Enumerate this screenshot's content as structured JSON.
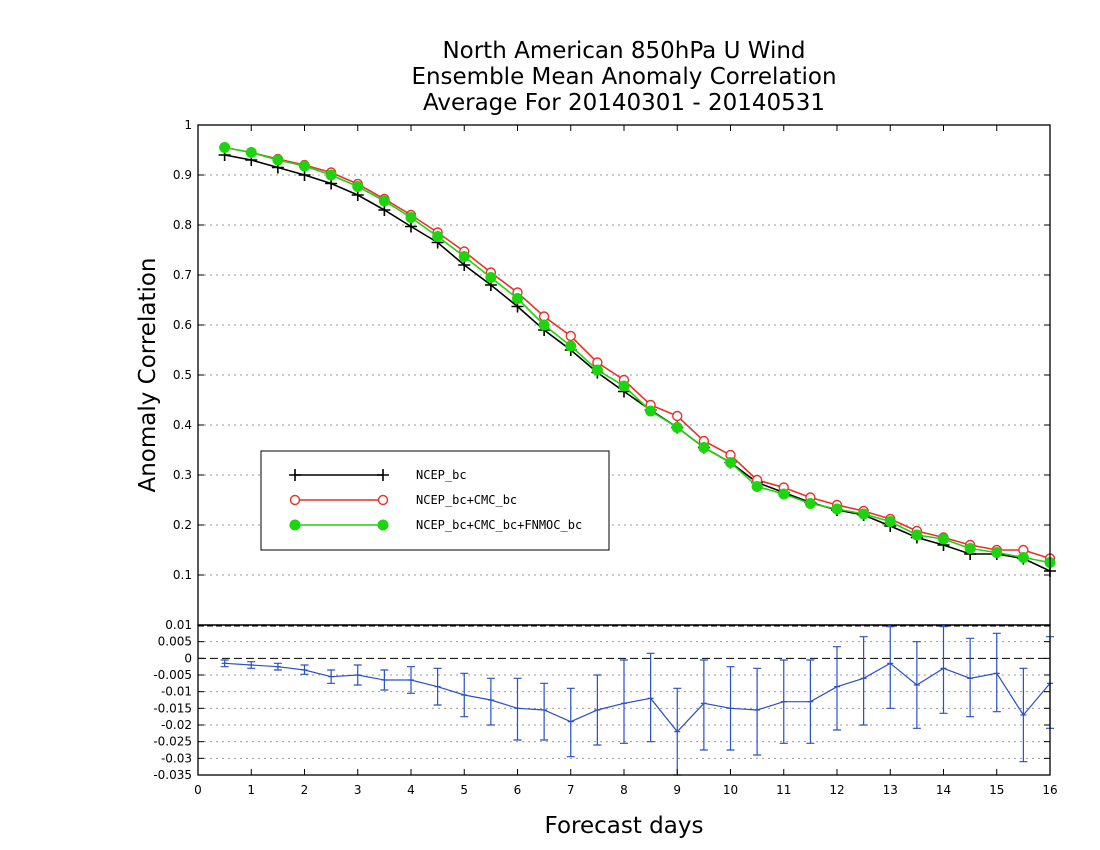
{
  "chart_data": [
    {
      "type": "line",
      "title": [
        "North American 850hPa U Wind",
        "Ensemble Mean Anomaly Correlation",
        "Average For 20140301 - 20140531"
      ],
      "ylabel": "Anomaly Correlation",
      "ylim": [
        0,
        1
      ],
      "yticks": [
        "0.1",
        "0.2",
        "0.3",
        "0.4",
        "0.5",
        "0.6",
        "0.7",
        "0.8",
        "0.9",
        "1"
      ],
      "grid": true,
      "legend_position": "lower-left",
      "x": [
        0.5,
        1,
        1.5,
        2,
        2.5,
        3,
        3.5,
        4,
        4.5,
        5,
        5.5,
        6,
        6.5,
        7,
        7.5,
        8,
        8.5,
        9,
        9.5,
        10,
        10.5,
        11,
        11.5,
        12,
        12.5,
        13,
        13.5,
        14,
        14.5,
        15,
        15.5,
        16
      ],
      "series": [
        {
          "name": "NCEP_bc",
          "color": "#000000",
          "marker": "plus",
          "values": [
            0.94,
            0.93,
            0.915,
            0.9,
            0.883,
            0.86,
            0.83,
            0.797,
            0.765,
            0.72,
            0.68,
            0.637,
            0.59,
            0.55,
            0.505,
            0.467,
            0.43,
            0.395,
            0.355,
            0.325,
            0.285,
            0.265,
            0.245,
            0.23,
            0.22,
            0.198,
            0.175,
            0.16,
            0.142,
            0.142,
            0.133,
            0.108
          ]
        },
        {
          "name": "NCEP_bc+CMC_bc",
          "color": "#e8312a",
          "marker": "open-circle",
          "values": [
            0.955,
            0.945,
            0.932,
            0.92,
            0.905,
            0.882,
            0.852,
            0.82,
            0.785,
            0.747,
            0.705,
            0.665,
            0.617,
            0.578,
            0.525,
            0.49,
            0.44,
            0.418,
            0.368,
            0.34,
            0.29,
            0.275,
            0.255,
            0.24,
            0.228,
            0.212,
            0.188,
            0.175,
            0.16,
            0.15,
            0.15,
            0.133
          ]
        },
        {
          "name": "NCEP_bc+CMC_bc+FNMOC_bc",
          "color": "#1ed40e",
          "marker": "filled-circle",
          "values": [
            0.955,
            0.945,
            0.93,
            0.918,
            0.9,
            0.877,
            0.848,
            0.815,
            0.777,
            0.737,
            0.695,
            0.653,
            0.6,
            0.558,
            0.51,
            0.478,
            0.428,
            0.395,
            0.355,
            0.325,
            0.277,
            0.262,
            0.243,
            0.232,
            0.222,
            0.207,
            0.18,
            0.172,
            0.153,
            0.145,
            0.135,
            0.125
          ]
        }
      ]
    },
    {
      "type": "line",
      "xlabel": "Forecast days",
      "xlim": [
        0,
        16
      ],
      "xticks": [
        "0",
        "1",
        "2",
        "3",
        "4",
        "5",
        "6",
        "7",
        "8",
        "9",
        "10",
        "11",
        "12",
        "13",
        "14",
        "15",
        "16"
      ],
      "ylim": [
        -0.035,
        0.01
      ],
      "yticks": [
        "0.01",
        "0.005",
        "0",
        "-0.005",
        "-0.01",
        "-0.015",
        "-0.02",
        "-0.025",
        "-0.03",
        "-0.035"
      ],
      "grid": true,
      "x": [
        0.5,
        1,
        1.5,
        2,
        2.5,
        3,
        3.5,
        4,
        4.5,
        5,
        5.5,
        6,
        6.5,
        7,
        7.5,
        8,
        8.5,
        9,
        9.5,
        10,
        10.5,
        11,
        11.5,
        12,
        12.5,
        13,
        13.5,
        14,
        14.5,
        15,
        15.5,
        16
      ],
      "series": [
        {
          "color": "#2b4fc6",
          "marker": "error-bar",
          "values": [
            -0.0015,
            -0.002,
            -0.0025,
            -0.0035,
            -0.0055,
            -0.005,
            -0.0065,
            -0.0065,
            -0.0085,
            -0.011,
            -0.0125,
            -0.015,
            -0.0155,
            -0.019,
            -0.0155,
            -0.0135,
            -0.012,
            -0.022,
            -0.0135,
            -0.015,
            -0.0155,
            -0.013,
            -0.013,
            -0.0085,
            -0.006,
            -0.0015,
            -0.008,
            -0.003,
            -0.006,
            -0.0045,
            -0.017,
            -0.0075
          ],
          "err_low": [
            -0.0025,
            -0.003,
            -0.0035,
            -0.0048,
            -0.0075,
            -0.008,
            -0.0095,
            -0.0105,
            -0.014,
            -0.0175,
            -0.02,
            -0.0245,
            -0.0245,
            -0.0295,
            -0.026,
            -0.0255,
            -0.025,
            -0.035,
            -0.0275,
            -0.0275,
            -0.029,
            -0.0255,
            -0.0255,
            -0.0215,
            -0.02,
            -0.015,
            -0.021,
            -0.0165,
            -0.0175,
            -0.016,
            -0.031,
            -0.021
          ],
          "err_high": [
            -0.0005,
            -0.001,
            -0.0015,
            -0.002,
            -0.0035,
            -0.002,
            -0.0035,
            -0.0025,
            -0.003,
            -0.0045,
            -0.006,
            -0.006,
            -0.0075,
            -0.009,
            -0.005,
            -0.0005,
            0.0015,
            -0.009,
            -0.0005,
            -0.0025,
            -0.003,
            -0.0005,
            -0.0005,
            0.0035,
            0.0065,
            0.0095,
            0.005,
            0.0095,
            0.006,
            0.0075,
            -0.003,
            0.0065
          ]
        }
      ]
    }
  ]
}
